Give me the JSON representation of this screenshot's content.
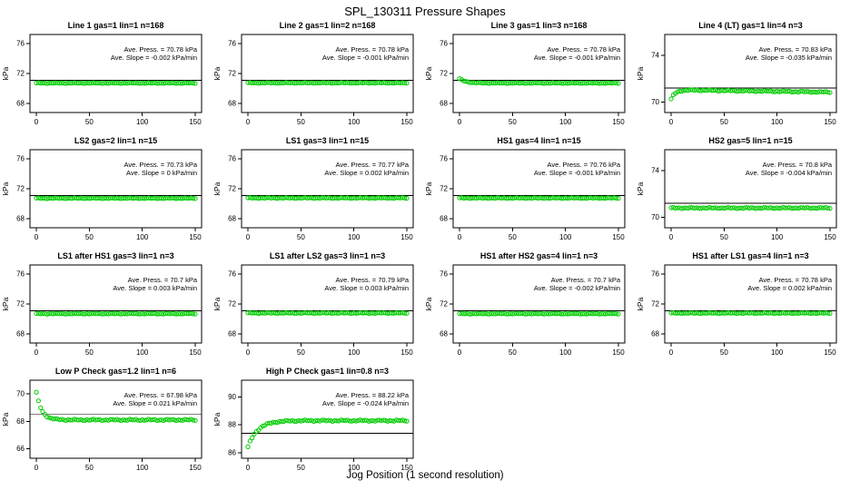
{
  "chart_data": {
    "type": "scatter",
    "title": "SPL_130311  Pressure Shapes",
    "xlabel": "Jog Position (1 second resolution)",
    "grid": {
      "rows": 4,
      "cols": 4,
      "filled_panels": 14
    },
    "x": {
      "ticks": [
        0,
        50,
        100,
        150
      ],
      "lim": [
        -6,
        156
      ]
    },
    "point_color": "#00cc00",
    "point_style": "open-circle",
    "panels": [
      {
        "row": 0,
        "col": 0,
        "title": "Line 1 gas=1 lin=1 n=168",
        "ylabel": "kPa",
        "y_ticks": [
          68,
          72,
          76
        ],
        "ylim": [
          66.8,
          77.2
        ],
        "ref_line": 71.1,
        "ave_press_kpa": 70.78,
        "ave_slope_kpa_min": -0.002,
        "ann_press": "Ave. Press. =  70.78 kPa",
        "ann_slope": "Ave. Slope =  -0.002  kPa/min",
        "shape": {
          "type": "flat",
          "level": 70.72
        }
      },
      {
        "row": 0,
        "col": 1,
        "title": "Line 2 gas=1 lin=2 n=168",
        "ylabel": "kPa",
        "y_ticks": [
          68,
          72,
          76
        ],
        "ylim": [
          66.8,
          77.2
        ],
        "ref_line": 71.1,
        "ave_press_kpa": 70.78,
        "ave_slope_kpa_min": -0.001,
        "ann_press": "Ave. Press. =  70.78 kPa",
        "ann_slope": "Ave. Slope =  -0.001  kPa/min",
        "shape": {
          "type": "flat",
          "level": 70.75
        }
      },
      {
        "row": 0,
        "col": 2,
        "title": "Line 3 gas=1 lin=3 n=168",
        "ylabel": "kPa",
        "y_ticks": [
          68,
          72,
          76
        ],
        "ylim": [
          66.8,
          77.2
        ],
        "ref_line": 71.1,
        "ave_press_kpa": 70.78,
        "ave_slope_kpa_min": -0.001,
        "ann_press": "Ave. Press. =  70.78 kPa",
        "ann_slope": "Ave. Slope =  -0.001  kPa/min",
        "shape": {
          "type": "decay",
          "start": 71.3,
          "level": 70.72,
          "tau": 6
        }
      },
      {
        "row": 0,
        "col": 3,
        "title": "Line 4 (LT) gas=1 lin=4 n=3",
        "ylabel": "kPa",
        "y_ticks": [
          70,
          74
        ],
        "ylim": [
          69.1,
          75.8
        ],
        "ref_line": 71.2,
        "ave_press_kpa": 70.83,
        "ave_slope_kpa_min": -0.035,
        "ann_press": "Ave. Press. =  70.83 kPa",
        "ann_slope": "Ave. Slope =  -0.035  kPa/min",
        "shape": {
          "type": "peak",
          "start": 70.25,
          "peak": 71.05,
          "level": 70.85,
          "tau": 4
        }
      },
      {
        "row": 1,
        "col": 0,
        "title": "LS2 gas=2 lin=1 n=15",
        "ylabel": "kPa",
        "y_ticks": [
          68,
          72,
          76
        ],
        "ylim": [
          66.8,
          77.2
        ],
        "ref_line": 71.1,
        "ave_press_kpa": 70.73,
        "ave_slope_kpa_min": 0,
        "ann_press": "Ave. Press. =  70.73 kPa",
        "ann_slope": "Ave. Slope =  0  kPa/min",
        "shape": {
          "type": "flat",
          "level": 70.73
        }
      },
      {
        "row": 1,
        "col": 1,
        "title": "LS1 gas=3 lin=1 n=15",
        "ylabel": "kPa",
        "y_ticks": [
          68,
          72,
          76
        ],
        "ylim": [
          66.8,
          77.2
        ],
        "ref_line": 71.1,
        "ave_press_kpa": 70.77,
        "ave_slope_kpa_min": 0.002,
        "ann_press": "Ave. Press. =  70.77 kPa",
        "ann_slope": "Ave. Slope =  0.002  kPa/min",
        "shape": {
          "type": "flat",
          "level": 70.77
        }
      },
      {
        "row": 1,
        "col": 2,
        "title": "HS1 gas=4 lin=1 n=15",
        "ylabel": "kPa",
        "y_ticks": [
          68,
          72,
          76
        ],
        "ylim": [
          66.8,
          77.2
        ],
        "ref_line": 71.1,
        "ave_press_kpa": 70.76,
        "ave_slope_kpa_min": -0.001,
        "ann_press": "Ave. Press. =  70.76 kPa",
        "ann_slope": "Ave. Slope =  -0.001  kPa/min",
        "shape": {
          "type": "flat",
          "level": 70.76
        }
      },
      {
        "row": 1,
        "col": 3,
        "title": "HS2 gas=5 lin=1 n=15",
        "ylabel": "kPa",
        "y_ticks": [
          70,
          74
        ],
        "ylim": [
          69.1,
          75.8
        ],
        "ref_line": 71.2,
        "ave_press_kpa": 70.8,
        "ave_slope_kpa_min": -0.004,
        "ann_press": "Ave. Press. =  70.8 kPa",
        "ann_slope": "Ave. Slope =  -0.004  kPa/min",
        "shape": {
          "type": "flat",
          "level": 70.8
        }
      },
      {
        "row": 2,
        "col": 0,
        "title": "LS1 after HS1 gas=3 lin=1 n=3",
        "ylabel": "kPa",
        "y_ticks": [
          68,
          72,
          76
        ],
        "ylim": [
          66.8,
          77.2
        ],
        "ref_line": 71.1,
        "ave_press_kpa": 70.7,
        "ave_slope_kpa_min": 0.003,
        "ann_press": "Ave. Press. =  70.7 kPa",
        "ann_slope": "Ave. Slope =  0.003  kPa/min",
        "shape": {
          "type": "flat",
          "level": 70.7
        }
      },
      {
        "row": 2,
        "col": 1,
        "title": "LS1 after LS2 gas=3 lin=1 n=3",
        "ylabel": "kPa",
        "y_ticks": [
          68,
          72,
          76
        ],
        "ylim": [
          66.8,
          77.2
        ],
        "ref_line": 71.1,
        "ave_press_kpa": 70.79,
        "ave_slope_kpa_min": 0.003,
        "ann_press": "Ave. Press. =  70.79 kPa",
        "ann_slope": "Ave. Slope =  0.003  kPa/min",
        "shape": {
          "type": "flat",
          "level": 70.79
        }
      },
      {
        "row": 2,
        "col": 2,
        "title": "HS1 after HS2 gas=4 lin=1 n=3",
        "ylabel": "kPa",
        "y_ticks": [
          68,
          72,
          76
        ],
        "ylim": [
          66.8,
          77.2
        ],
        "ref_line": 71.1,
        "ave_press_kpa": 70.7,
        "ave_slope_kpa_min": -0.002,
        "ann_press": "Ave. Press. =  70.7 kPa",
        "ann_slope": "Ave. Slope =  -0.002  kPa/min",
        "shape": {
          "type": "flat",
          "level": 70.7
        }
      },
      {
        "row": 2,
        "col": 3,
        "title": "HS1 after LS1 gas=4 lin=1 n=3",
        "ylabel": "kPa",
        "y_ticks": [
          68,
          72,
          76
        ],
        "ylim": [
          66.8,
          77.2
        ],
        "ref_line": 71.1,
        "ave_press_kpa": 70.78,
        "ave_slope_kpa_min": 0.002,
        "ann_press": "Ave. Press. =  70.78 kPa",
        "ann_slope": "Ave. Slope =  0.002  kPa/min",
        "shape": {
          "type": "flat",
          "level": 70.78
        }
      },
      {
        "row": 3,
        "col": 0,
        "title": "Low P Check gas=1.2 lin=1 n=6",
        "ylabel": "kPa",
        "y_ticks": [
          66,
          68,
          70
        ],
        "ylim": [
          65.3,
          71.0
        ],
        "ref_line": 68.5,
        "ave_press_kpa": 67.98,
        "ave_slope_kpa_min": 0.021,
        "ann_press": "Ave. Press. =  67.98 kPa",
        "ann_slope": "Ave. Slope =  0.021  kPa/min",
        "shape": {
          "type": "decay",
          "start": 70.1,
          "level": 68.1,
          "tau": 5
        }
      },
      {
        "row": 3,
        "col": 1,
        "title": "High P Check gas=1 lin=0.8 n=3",
        "ylabel": "kPa",
        "y_ticks": [
          86,
          88,
          90
        ],
        "ylim": [
          85.6,
          91.2
        ],
        "ref_line": 87.4,
        "ave_press_kpa": 88.22,
        "ave_slope_kpa_min": -0.024,
        "ann_press": "Ave. Press. =  88.22 kPa",
        "ann_slope": "Ave. Slope =  -0.024  kPa/min",
        "shape": {
          "type": "rise",
          "start": 86.4,
          "level": 88.3,
          "tau": 9
        }
      }
    ]
  }
}
